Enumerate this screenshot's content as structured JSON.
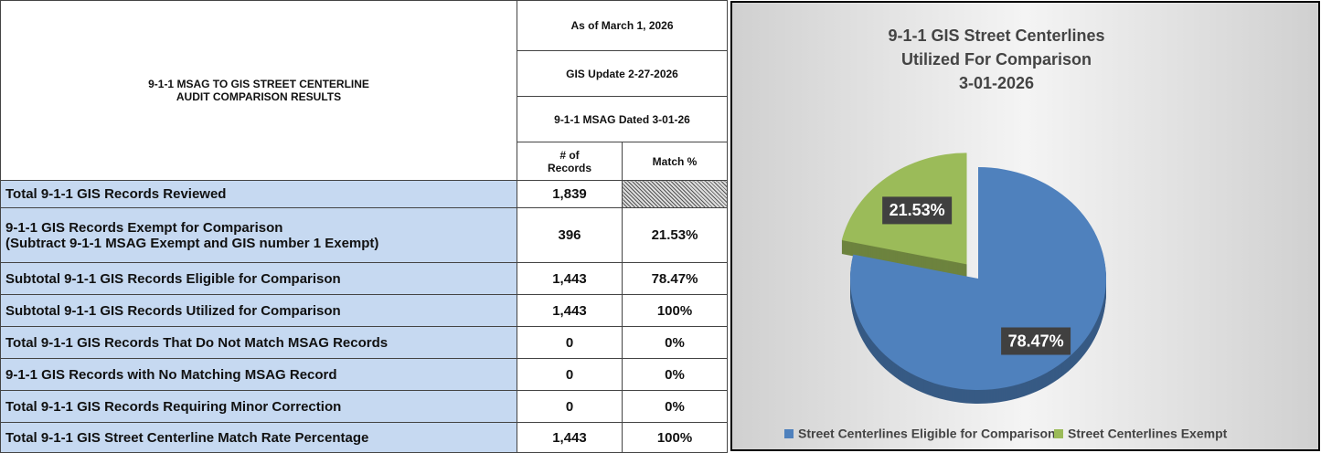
{
  "table": {
    "title": [
      "9-1-1 MSAG TO GIS STREET CENTERLINE",
      "AUDIT COMPARISON RESULTS"
    ],
    "as_of": "As of March 1, 2026",
    "gis_update": "GIS Update 2-27-2026",
    "msag_dated": "9-1-1 MSAG Dated 3-01-26",
    "columns": [
      "# of Records",
      "Match %"
    ],
    "rows": [
      {
        "label": [
          "Total 9-1-1 GIS Records Reviewed"
        ],
        "records": "1,839"
      },
      {
        "label": [
          "9-1-1 GIS Records Exempt for Comparison",
          "(Subtract 9-1-1 MSAG Exempt and GIS number 1 Exempt)"
        ],
        "records": "396",
        "match": "21.53%"
      },
      {
        "label": [
          "Subtotal 9-1-1 GIS Records Eligible for Comparison"
        ],
        "records": "1,443",
        "match": "78.47%"
      },
      {
        "label": [
          "Subtotal 9-1-1 GIS Records Utilized for Comparison"
        ],
        "records": "1,443",
        "match": "100%"
      },
      {
        "label": [
          "Total 9-1-1 GIS Records That Do Not Match MSAG Records"
        ],
        "records": "0",
        "match": "0%"
      },
      {
        "label": [
          "9-1-1 GIS Records with No Matching MSAG Record"
        ],
        "records": "0",
        "match": "0%"
      },
      {
        "label": [
          "Total 9-1-1 GIS Records Requiring Minor Correction"
        ],
        "records": "0",
        "match": "0%"
      },
      {
        "label": [
          "Total 9-1-1 GIS Street Centerline Match Rate Percentage"
        ],
        "records": "1,443",
        "match": "100%"
      }
    ]
  },
  "chart_data": {
    "type": "pie",
    "title": [
      "9-1-1 GIS Street Centerlines",
      "Utilized For Comparison",
      "3-01-2026"
    ],
    "categories": [
      "Street Centerlines Eligible for Comparison",
      "Street Centerlines Exempt"
    ],
    "values": [
      78.47,
      21.53
    ],
    "value_labels": [
      "78.47%",
      "21.53%"
    ],
    "colors": [
      "#4f81bd",
      "#9bbb59"
    ],
    "legend": "bottom"
  }
}
